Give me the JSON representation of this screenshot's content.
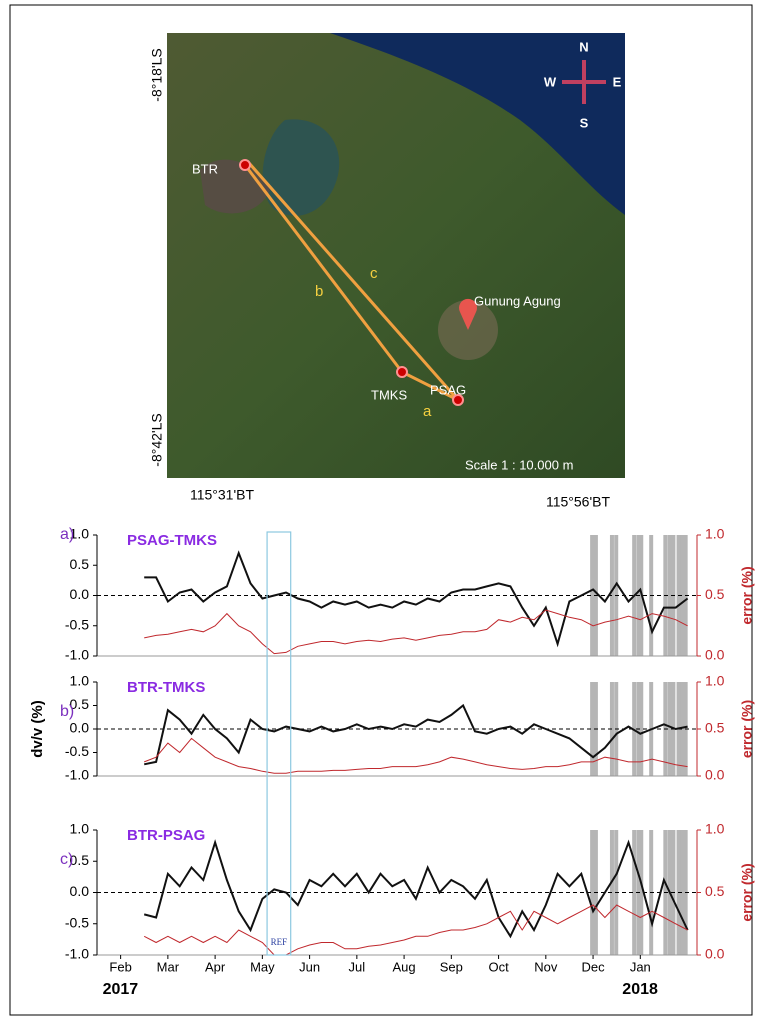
{
  "map": {
    "lat_top": "-8°18'LS",
    "lat_bottom": "-8°42'LS",
    "lon_left": "115°31'BT",
    "lon_right": "115°56'BT",
    "stations": [
      "BTR",
      "TMKS",
      "PSAG"
    ],
    "volcano": "Gunung Agung",
    "paths": [
      "a",
      "b",
      "c"
    ],
    "compass": {
      "n": "N",
      "s": "S",
      "e": "E",
      "w": "W"
    },
    "scale": "Scale 1 : 10.000 m"
  },
  "highlight_x": [
    9.98,
    10.06,
    10.4,
    10.49,
    10.87,
    10.96,
    11.02,
    11.23,
    11.53,
    11.62,
    11.7,
    11.81,
    11.89,
    11.96
  ],
  "ref_window": [
    3.1,
    3.6
  ],
  "ref_label": "REF",
  "chart_data": [
    {
      "type": "line",
      "panel_label": "a)",
      "title": "PSAG-TMKS",
      "y2label": "error (%)",
      "xlim": [
        -0.5,
        12.2
      ],
      "ylim": [
        -1,
        1
      ],
      "y2lim": [
        0,
        1
      ],
      "hline": 0,
      "yticks": [
        {
          "value": -1,
          "label": "-1.0"
        },
        {
          "value": -0.5,
          "label": "-0.5"
        },
        {
          "value": 0,
          "label": "0.0"
        },
        {
          "value": 0.5,
          "label": "0.5"
        },
        {
          "value": 1,
          "label": "1.0"
        }
      ],
      "y2ticks": [
        {
          "value": 0,
          "label": "0.0"
        },
        {
          "value": 0.5,
          "label": "0.5"
        },
        {
          "value": 1,
          "label": "1.0"
        }
      ],
      "x": [
        0.5,
        0.75,
        1,
        1.25,
        1.5,
        1.75,
        2,
        2.25,
        2.5,
        2.75,
        3,
        3.25,
        3.5,
        3.75,
        4,
        4.25,
        4.5,
        4.75,
        5,
        5.25,
        5.5,
        5.75,
        6,
        6.25,
        6.5,
        6.75,
        7,
        7.25,
        7.5,
        7.75,
        8,
        8.25,
        8.5,
        8.75,
        9,
        9.25,
        9.5,
        9.75,
        10,
        10.25,
        10.5,
        10.75,
        11,
        11.25,
        11.5,
        11.75,
        12
      ],
      "series": [
        {
          "color": "#111111",
          "values": [
            0.3,
            0.3,
            -0.1,
            0.05,
            0.1,
            -0.1,
            0.05,
            0.15,
            0.7,
            0.2,
            -0.05,
            0,
            0.05,
            -0.05,
            -0.1,
            -0.2,
            -0.1,
            -0.15,
            -0.1,
            -0.2,
            -0.15,
            -0.2,
            -0.1,
            -0.15,
            -0.05,
            -0.1,
            0.05,
            0.1,
            0.1,
            0.15,
            0.2,
            0.15,
            -0.2,
            -0.5,
            -0.2,
            -0.8,
            -0.1,
            0,
            0.1,
            -0.1,
            0.2,
            -0.1,
            0.1,
            -0.6,
            -0.2,
            -0.2,
            -0.05
          ]
        },
        {
          "color": "#c0282d",
          "axis": "y2",
          "values": [
            0.15,
            0.17,
            0.18,
            0.2,
            0.22,
            0.2,
            0.25,
            0.35,
            0.25,
            0.2,
            0.1,
            0.02,
            0.03,
            0.08,
            0.1,
            0.12,
            0.12,
            0.1,
            0.12,
            0.13,
            0.12,
            0.14,
            0.15,
            0.13,
            0.15,
            0.17,
            0.18,
            0.2,
            0.2,
            0.22,
            0.3,
            0.28,
            0.32,
            0.3,
            0.38,
            0.35,
            0.32,
            0.3,
            0.25,
            0.28,
            0.3,
            0.33,
            0.3,
            0.35,
            0.33,
            0.3,
            0.25
          ]
        }
      ]
    },
    {
      "type": "line",
      "panel_label": "b)",
      "title": "BTR-TMKS",
      "ylabel": "dv/v (%)",
      "y2label": "error (%)",
      "xlim": [
        -0.5,
        12.2
      ],
      "ylim": [
        -1,
        1
      ],
      "y2lim": [
        0,
        1
      ],
      "hline": 0,
      "yticks": [
        {
          "value": -1,
          "label": "-1.0"
        },
        {
          "value": -0.5,
          "label": "-0.5"
        },
        {
          "value": 0,
          "label": "0.0"
        },
        {
          "value": 0.5,
          "label": "0.5"
        },
        {
          "value": 1,
          "label": "1.0"
        }
      ],
      "y2ticks": [
        {
          "value": 0,
          "label": "0.0"
        },
        {
          "value": 0.5,
          "label": "0.5"
        },
        {
          "value": 1,
          "label": "1.0"
        }
      ],
      "x": [
        0.5,
        0.75,
        1,
        1.25,
        1.5,
        1.75,
        2,
        2.25,
        2.5,
        2.75,
        3,
        3.25,
        3.5,
        3.75,
        4,
        4.25,
        4.5,
        4.75,
        5,
        5.25,
        5.5,
        5.75,
        6,
        6.25,
        6.5,
        6.75,
        7,
        7.25,
        7.5,
        7.75,
        8,
        8.25,
        8.5,
        8.75,
        9,
        9.25,
        9.5,
        9.75,
        10,
        10.25,
        10.5,
        10.75,
        11,
        11.25,
        11.5,
        11.75,
        12
      ],
      "series": [
        {
          "color": "#111111",
          "values": [
            -0.75,
            -0.7,
            0.4,
            0.2,
            -0.1,
            0.3,
            0,
            -0.2,
            -0.5,
            0.2,
            0,
            -0.05,
            0.05,
            0,
            -0.05,
            0.05,
            -0.05,
            0,
            0.1,
            0,
            0.05,
            0,
            0.1,
            0.05,
            0.2,
            0.15,
            0.3,
            0.5,
            -0.05,
            -0.1,
            0,
            0.05,
            -0.1,
            0.1,
            0,
            -0.1,
            -0.2,
            -0.4,
            -0.6,
            -0.4,
            -0.1,
            0.05,
            -0.1,
            0,
            0.1,
            0,
            0.05
          ]
        },
        {
          "color": "#c0282d",
          "axis": "y2",
          "values": [
            0.15,
            0.2,
            0.35,
            0.25,
            0.4,
            0.3,
            0.2,
            0.15,
            0.1,
            0.08,
            0.05,
            0.03,
            0.03,
            0.05,
            0.05,
            0.05,
            0.06,
            0.06,
            0.07,
            0.08,
            0.08,
            0.1,
            0.1,
            0.1,
            0.12,
            0.15,
            0.2,
            0.18,
            0.15,
            0.12,
            0.1,
            0.08,
            0.07,
            0.08,
            0.1,
            0.1,
            0.12,
            0.15,
            0.15,
            0.2,
            0.18,
            0.15,
            0.15,
            0.18,
            0.15,
            0.12,
            0.1
          ]
        }
      ]
    },
    {
      "type": "line",
      "panel_label": "c)",
      "title": "BTR-PSAG",
      "y2label": "error (%)",
      "xlim": [
        -0.5,
        12.2
      ],
      "ylim": [
        -1,
        1
      ],
      "y2lim": [
        0,
        1
      ],
      "hline": 0,
      "yticks": [
        {
          "value": -1,
          "label": "-1.0"
        },
        {
          "value": -0.5,
          "label": "-0.5"
        },
        {
          "value": 0,
          "label": "0.0"
        },
        {
          "value": 0.5,
          "label": "0.5"
        },
        {
          "value": 1,
          "label": "1.0"
        }
      ],
      "y2ticks": [
        {
          "value": 0,
          "label": "0.0"
        },
        {
          "value": 0.5,
          "label": "0.5"
        },
        {
          "value": 1,
          "label": "1.0"
        }
      ],
      "xticks": [
        {
          "value": 0,
          "label": "Feb"
        },
        {
          "value": 1,
          "label": "Mar"
        },
        {
          "value": 2,
          "label": "Apr"
        },
        {
          "value": 3,
          "label": "May"
        },
        {
          "value": 4,
          "label": "Jun"
        },
        {
          "value": 5,
          "label": "Jul"
        },
        {
          "value": 6,
          "label": "Aug"
        },
        {
          "value": 7,
          "label": "Sep"
        },
        {
          "value": 8,
          "label": "Oct"
        },
        {
          "value": 9,
          "label": "Nov"
        },
        {
          "value": 10,
          "label": "Dec"
        },
        {
          "value": 11,
          "label": "Jan"
        }
      ],
      "year_labels": [
        {
          "value": 0,
          "label": "2017"
        },
        {
          "value": 11,
          "label": "2018"
        }
      ],
      "x": [
        0.5,
        0.75,
        1,
        1.25,
        1.5,
        1.75,
        2,
        2.25,
        2.5,
        2.75,
        3,
        3.25,
        3.5,
        3.75,
        4,
        4.25,
        4.5,
        4.75,
        5,
        5.25,
        5.5,
        5.75,
        6,
        6.25,
        6.5,
        6.75,
        7,
        7.25,
        7.5,
        7.75,
        8,
        8.25,
        8.5,
        8.75,
        9,
        9.25,
        9.5,
        9.75,
        10,
        10.25,
        10.5,
        10.75,
        11,
        11.25,
        11.5,
        11.75,
        12
      ],
      "series": [
        {
          "color": "#111111",
          "values": [
            -0.35,
            -0.4,
            0.3,
            0.1,
            0.4,
            0.2,
            0.8,
            0.2,
            -0.3,
            -0.6,
            -0.1,
            0.05,
            0,
            -0.2,
            0.2,
            0.1,
            0.3,
            0.1,
            0.3,
            0,
            0.3,
            0.1,
            0.2,
            -0.1,
            0.4,
            0,
            0.2,
            0.1,
            -0.1,
            0.2,
            -0.4,
            -0.7,
            -0.3,
            -0.6,
            -0.2,
            0.3,
            0.1,
            0.3,
            -0.3,
            0,
            0.3,
            0.8,
            0.2,
            -0.5,
            0.2,
            -0.2,
            -0.6
          ]
        },
        {
          "color": "#c0282d",
          "axis": "y2",
          "values": [
            0.15,
            0.1,
            0.15,
            0.1,
            0.15,
            0.1,
            0.15,
            0.1,
            0.2,
            0.15,
            0.1,
            0,
            0,
            0.05,
            0.08,
            0.1,
            0.1,
            0.05,
            0.05,
            0.07,
            0.08,
            0.1,
            0.12,
            0.15,
            0.15,
            0.18,
            0.2,
            0.2,
            0.22,
            0.25,
            0.3,
            0.35,
            0.2,
            0.35,
            0.3,
            0.25,
            0.3,
            0.35,
            0.4,
            0.3,
            0.4,
            0.35,
            0.3,
            0.35,
            0.3,
            0.25,
            0.2
          ]
        }
      ]
    }
  ]
}
